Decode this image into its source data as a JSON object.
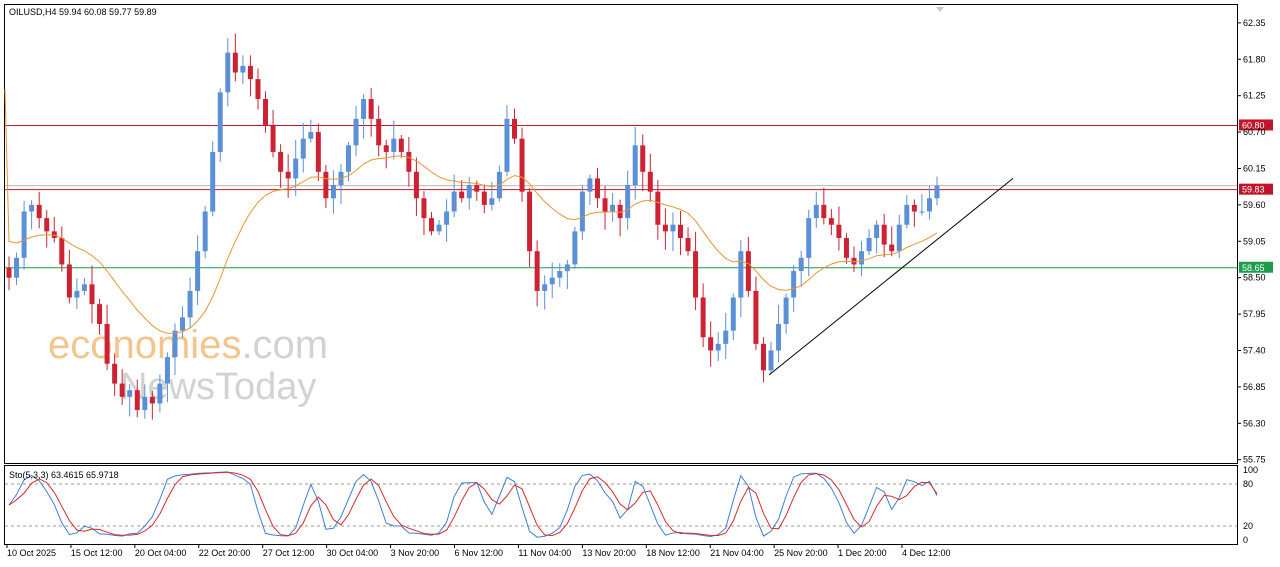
{
  "chart_data": {
    "type": "candlestick",
    "symbol_header": "OILUSD,H4  59.94 60.08 59.77 59.89",
    "watermark": {
      "part1": "economies",
      "part2": ".com",
      "line2": "NewsToday"
    },
    "y_axis": {
      "ylim": [
        55.7,
        62.62
      ],
      "ticks": [
        "62.35",
        "61.80",
        "61.25",
        "60.70",
        "60.15",
        "59.60",
        "59.05",
        "58.50",
        "57.95",
        "57.40",
        "56.85",
        "56.30",
        "55.75"
      ]
    },
    "x_axis": {
      "labels": [
        "10 Oct 2025",
        "15 Oct 12:00",
        "20 Oct 04:00",
        "22 Oct 20:00",
        "27 Oct 12:00",
        "30 Oct 04:00",
        "3 Nov 20:00",
        "6 Nov 12:00",
        "11 Nov 04:00",
        "13 Nov 20:00",
        "18 Nov 12:00",
        "21 Nov 04:00",
        "25 Nov 20:00",
        "1 Dec 20:00",
        "4 Dec 12:00"
      ]
    },
    "levels": [
      {
        "label": "60.80",
        "value": 60.8,
        "color": "#c0142b"
      },
      {
        "label": "59.83",
        "value": 59.83,
        "color": "#c0142b"
      },
      {
        "label": "58.65",
        "value": 58.65,
        "color": "#1a9c4c"
      }
    ],
    "current_price": 59.89,
    "moving_average_color": "#e8962e",
    "trendline": {
      "from_value": 57.03,
      "to_value": 60.0
    },
    "closes": [
      58.5,
      58.8,
      59.5,
      59.6,
      59.4,
      59.2,
      59.1,
      58.7,
      58.2,
      58.3,
      58.4,
      58.1,
      57.8,
      57.2,
      56.9,
      56.7,
      56.8,
      56.5,
      56.7,
      56.6,
      56.9,
      57.3,
      57.7,
      57.9,
      58.3,
      58.9,
      59.5,
      60.4,
      61.3,
      61.9,
      61.6,
      61.7,
      61.5,
      61.2,
      60.8,
      60.4,
      60.1,
      60.0,
      60.3,
      60.6,
      60.7,
      60.1,
      59.7,
      59.9,
      60.1,
      60.5,
      60.9,
      61.2,
      60.9,
      60.5,
      60.4,
      60.6,
      60.4,
      60.1,
      59.7,
      59.4,
      59.2,
      59.3,
      59.5,
      59.8,
      59.7,
      59.9,
      59.8,
      59.6,
      59.7,
      60.1,
      60.9,
      60.6,
      59.8,
      58.9,
      58.3,
      58.4,
      58.5,
      58.6,
      58.7,
      59.2,
      59.8,
      60.0,
      59.7,
      59.5,
      59.6,
      59.4,
      59.9,
      60.5,
      60.1,
      59.8,
      59.3,
      59.2,
      59.3,
      59.1,
      58.9,
      58.2,
      57.6,
      57.4,
      57.5,
      57.7,
      58.2,
      58.9,
      58.3,
      57.5,
      57.1,
      57.4,
      57.8,
      58.2,
      58.6,
      58.8,
      59.4,
      59.6,
      59.4,
      59.3,
      59.1,
      58.8,
      58.7,
      58.9,
      59.1,
      59.3,
      59.0,
      58.9,
      59.3,
      59.6,
      59.5,
      59.5,
      59.7,
      59.89
    ],
    "stochastic": {
      "label": "Sto(5,3,3) 63.4615 65.9718",
      "main_value": 63.4615,
      "signal_value": 65.9718,
      "levels": [
        80,
        20
      ],
      "ticks": [
        "100",
        "80",
        "20",
        "0"
      ],
      "main_color": "#3f7fd6",
      "signal_color": "#d62b2b"
    }
  }
}
